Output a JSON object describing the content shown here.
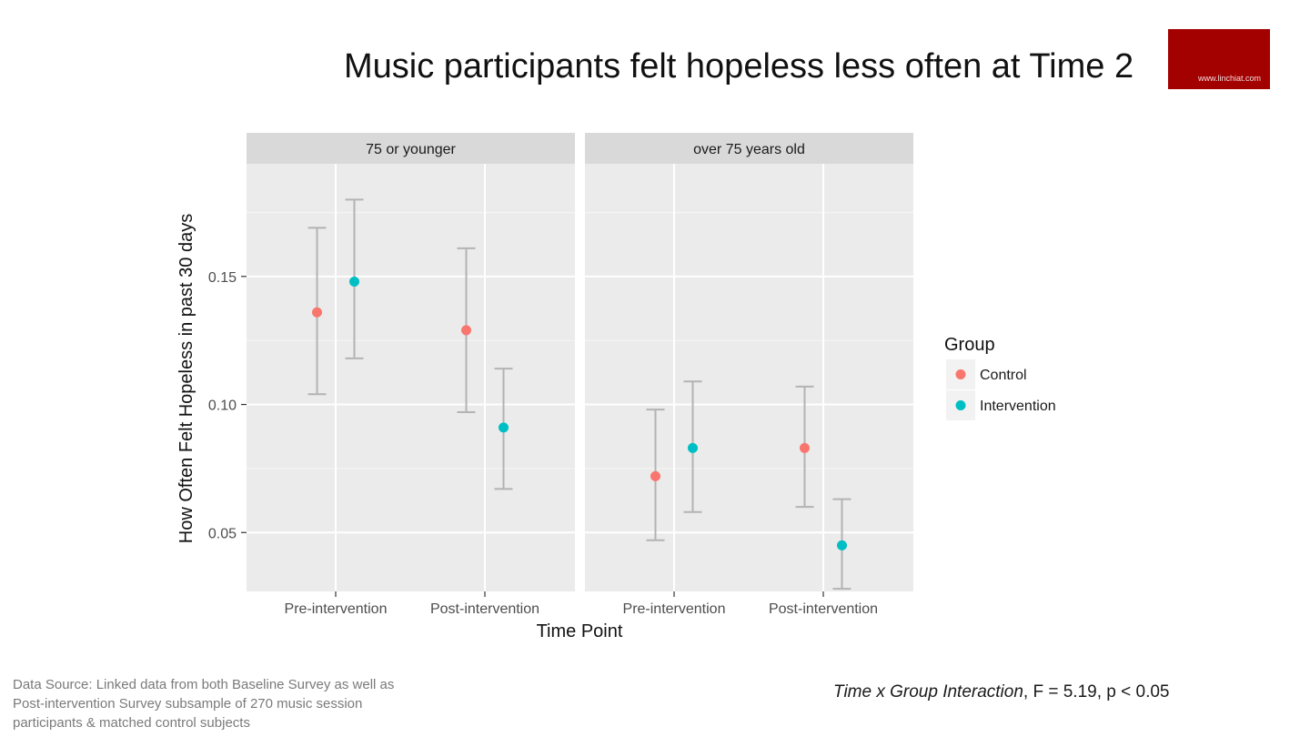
{
  "slide": {
    "title": "Music participants felt hopeless less often at Time 2",
    "brand": "www.linchiat.com",
    "source_note": "Data Source: Linked data from both Baseline Survey as well as Post-intervention Survey subsample of 270 music session participants & matched control subjects",
    "stat_label": "Time x Group Interaction",
    "stat_value": ", F = 5.19, p < 0.05"
  },
  "chart_data": {
    "type": "scatter",
    "ylabel": "How Often Felt Hopeless in past 30 days",
    "xlabel": "Time Point",
    "categories": [
      "Pre-intervention",
      "Post-intervention"
    ],
    "ylim": [
      0.027,
      0.194
    ],
    "yticks": [
      0.05,
      0.1,
      0.15
    ],
    "ytick_labels": [
      "0.05",
      "0.10",
      "0.15"
    ],
    "grid": true,
    "legend": {
      "title": "Group",
      "placement": "right",
      "items": [
        {
          "name": "Control",
          "color": "#F8766D"
        },
        {
          "name": "Intervention",
          "color": "#00BFC4"
        }
      ]
    },
    "errorbar_color": "#b3b3b3",
    "panels": [
      {
        "title": "75 or younger",
        "series": [
          {
            "name": "Control",
            "values": [
              0.136,
              0.129
            ],
            "lower": [
              0.104,
              0.097
            ],
            "upper": [
              0.169,
              0.161
            ]
          },
          {
            "name": "Intervention",
            "values": [
              0.148,
              0.091
            ],
            "lower": [
              0.118,
              0.067
            ],
            "upper": [
              0.18,
              0.114
            ]
          }
        ]
      },
      {
        "title": "over 75 years old",
        "series": [
          {
            "name": "Control",
            "values": [
              0.072,
              0.083
            ],
            "lower": [
              0.047,
              0.06
            ],
            "upper": [
              0.098,
              0.107
            ]
          },
          {
            "name": "Intervention",
            "values": [
              0.083,
              0.045
            ],
            "lower": [
              0.058,
              0.028
            ],
            "upper": [
              0.109,
              0.063
            ]
          }
        ]
      }
    ]
  }
}
